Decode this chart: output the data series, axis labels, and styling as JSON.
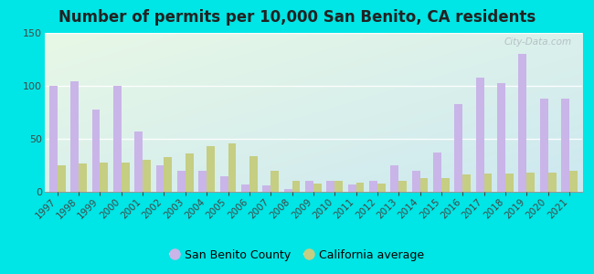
{
  "title": "Number of permits per 10,000 San Benito, CA residents",
  "years": [
    1997,
    1998,
    1999,
    2000,
    2001,
    2002,
    2003,
    2004,
    2005,
    2006,
    2007,
    2008,
    2009,
    2010,
    2011,
    2012,
    2013,
    2014,
    2015,
    2016,
    2017,
    2018,
    2019,
    2020,
    2021
  ],
  "san_benito": [
    100,
    104,
    78,
    100,
    57,
    25,
    20,
    20,
    15,
    7,
    6,
    3,
    10,
    10,
    7,
    10,
    25,
    20,
    37,
    83,
    108,
    103,
    130,
    88,
    88
  ],
  "ca_average": [
    25,
    27,
    28,
    28,
    30,
    33,
    36,
    43,
    46,
    34,
    20,
    10,
    8,
    10,
    9,
    8,
    10,
    13,
    13,
    16,
    17,
    17,
    18,
    18,
    20
  ],
  "bar_color_sb": "#c9b5e8",
  "bar_color_ca": "#c5ce82",
  "background_outer": "#00e5e5",
  "ylim_max": 150,
  "yticks": [
    0,
    50,
    100,
    150
  ],
  "watermark": "City-Data.com",
  "legend_sb": "San Benito County",
  "legend_ca": "California average",
  "title_fontsize": 12,
  "tick_fontsize": 7.5,
  "legend_fontsize": 9,
  "title_color": "#222222",
  "tick_color": "#444444",
  "grad_top_left": "#e8f5e0",
  "grad_bottom_right": "#cce8f0"
}
